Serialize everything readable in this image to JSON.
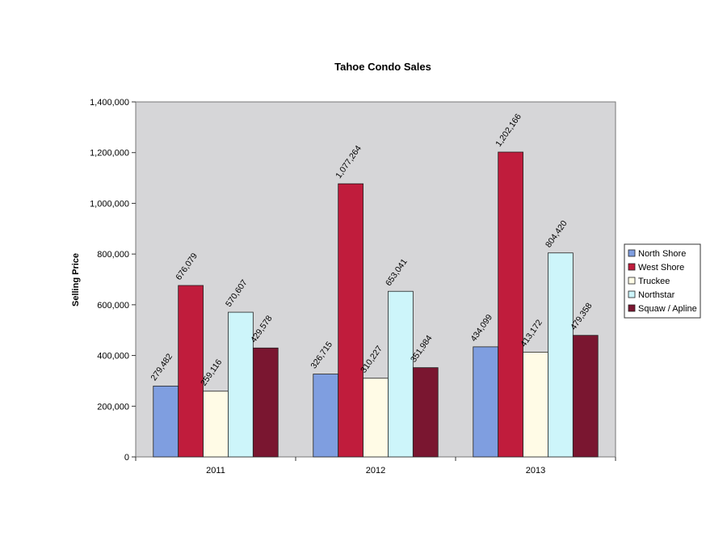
{
  "chart_data": {
    "type": "bar",
    "title": "Tahoe Condo Sales",
    "xlabel": "",
    "ylabel": "Selling Price",
    "categories": [
      "2011",
      "2012",
      "2013"
    ],
    "ylim": [
      0,
      1400000
    ],
    "yticks": [
      0,
      200000,
      400000,
      600000,
      800000,
      1000000,
      1200000,
      1400000
    ],
    "ytick_labels": [
      "0",
      "200,000",
      "400,000",
      "600,000",
      "800,000",
      "1,000,000",
      "1,200,000",
      "1,400,000"
    ],
    "grid": false,
    "legend_position": "right",
    "series": [
      {
        "name": "North Shore",
        "color": "#7f9ee0",
        "values": [
          279482,
          326715,
          434099
        ],
        "labels": [
          "279,482",
          "326,715",
          "434,099"
        ]
      },
      {
        "name": "West Shore",
        "color": "#c01c3c",
        "values": [
          676079,
          1077264,
          1202166
        ],
        "labels": [
          "676,079",
          "1,077,264",
          "1,202,166"
        ]
      },
      {
        "name": "Truckee",
        "color": "#fffbe6",
        "values": [
          259116,
          310227,
          413172
        ],
        "labels": [
          "259,116",
          "310,227",
          "413,172"
        ]
      },
      {
        "name": "Northstar",
        "color": "#cdf5fa",
        "values": [
          570607,
          653041,
          804420
        ],
        "labels": [
          "570,607",
          "653,041",
          "804,420"
        ]
      },
      {
        "name": "Squaw / Apline",
        "color": "#7a1630",
        "values": [
          429578,
          351984,
          479358
        ],
        "labels": [
          "429,578",
          "351,984",
          "479,358"
        ]
      }
    ]
  }
}
